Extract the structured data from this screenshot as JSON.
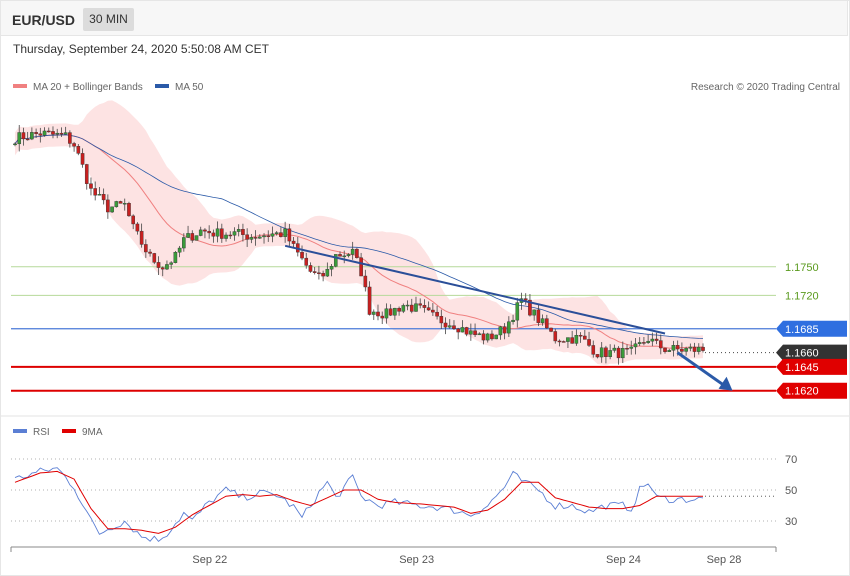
{
  "header": {
    "symbol": "EUR/USD",
    "timeframe": "30 MIN",
    "datetime": "Thursday, September 24, 2020 5:50:08 AM CET"
  },
  "legend": {
    "ma20": {
      "label": "MA 20 + Bollinger Bands",
      "color": "#f08080"
    },
    "ma50": {
      "label": "MA 50",
      "color": "#2b5aa8"
    },
    "rsi": {
      "label": "RSI",
      "color": "#5b7fd4"
    },
    "ma9": {
      "label": "9MA",
      "color": "#e00000"
    }
  },
  "copyright": "Research © 2020 Trading Central",
  "chart_data": {
    "type": "candlestick",
    "price_ylim": [
      1.1605,
      1.1925
    ],
    "x_ticks": [
      {
        "label": "Sep 22",
        "index": 49
      },
      {
        "label": "Sep 23",
        "index": 98
      },
      {
        "label": "Sep 24",
        "index": 147
      },
      {
        "label": "Sep 28",
        "index": 163
      }
    ],
    "candles_count": 164,
    "close_path": [
      [
        0,
        1.1885
      ],
      [
        6,
        1.189
      ],
      [
        12,
        1.1887
      ],
      [
        14,
        1.1878
      ],
      [
        16,
        1.1855
      ],
      [
        18,
        1.183
      ],
      [
        22,
        1.1812
      ],
      [
        26,
        1.1815
      ],
      [
        28,
        1.179
      ],
      [
        32,
        1.176
      ],
      [
        35,
        1.175
      ],
      [
        38,
        1.176
      ],
      [
        40,
        1.1778
      ],
      [
        44,
        1.1788
      ],
      [
        48,
        1.1785
      ],
      [
        52,
        1.1785
      ],
      [
        56,
        1.1782
      ],
      [
        60,
        1.1784
      ],
      [
        64,
        1.1785
      ],
      [
        66,
        1.177
      ],
      [
        70,
        1.1745
      ],
      [
        72,
        1.1738
      ],
      [
        74,
        1.1745
      ],
      [
        76,
        1.1762
      ],
      [
        80,
        1.1765
      ],
      [
        82,
        1.1745
      ],
      [
        84,
        1.1705
      ],
      [
        88,
        1.17
      ],
      [
        92,
        1.171
      ],
      [
        96,
        1.1705
      ],
      [
        100,
        1.1695
      ],
      [
        104,
        1.169
      ],
      [
        108,
        1.168
      ],
      [
        112,
        1.1675
      ],
      [
        116,
        1.1685
      ],
      [
        120,
        1.1715
      ],
      [
        124,
        1.1695
      ],
      [
        128,
        1.1675
      ],
      [
        134,
        1.1675
      ],
      [
        138,
        1.166
      ],
      [
        142,
        1.166
      ],
      [
        146,
        1.166
      ],
      [
        150,
        1.1675
      ],
      [
        152,
        1.1668
      ],
      [
        154,
        1.1664
      ],
      [
        156,
        1.1663
      ]
    ],
    "levels": [
      {
        "value": 1.175,
        "label": "1.1750",
        "style": "thin-green"
      },
      {
        "value": 1.172,
        "label": "1.1720",
        "style": "thin-green"
      },
      {
        "value": 1.1685,
        "label": "1.1685",
        "style": "blue-badge"
      },
      {
        "value": 1.166,
        "label": "1.1660",
        "style": "dark-badge"
      },
      {
        "value": 1.1645,
        "label": "1.1645",
        "style": "red-badge"
      },
      {
        "value": 1.162,
        "label": "1.1620",
        "style": "red-badge"
      }
    ],
    "trendline": [
      [
        64,
        1.1772
      ],
      [
        154,
        1.168
      ]
    ],
    "arrow": [
      [
        156,
        1.166
      ],
      [
        170,
        1.162
      ]
    ],
    "rsi": {
      "yticks": [
        30,
        50,
        70
      ],
      "rsi_path": [
        [
          0,
          57
        ],
        [
          6,
          62
        ],
        [
          10,
          64
        ],
        [
          14,
          52
        ],
        [
          18,
          30
        ],
        [
          20,
          22
        ],
        [
          22,
          25
        ],
        [
          26,
          30
        ],
        [
          30,
          20
        ],
        [
          34,
          18
        ],
        [
          36,
          22
        ],
        [
          40,
          35
        ],
        [
          42,
          30
        ],
        [
          46,
          42
        ],
        [
          50,
          50
        ],
        [
          54,
          45
        ],
        [
          58,
          48
        ],
        [
          62,
          47
        ],
        [
          66,
          39
        ],
        [
          68,
          32
        ],
        [
          72,
          48
        ],
        [
          74,
          55
        ],
        [
          76,
          45
        ],
        [
          80,
          58
        ],
        [
          82,
          46
        ],
        [
          86,
          40
        ],
        [
          90,
          42
        ],
        [
          96,
          40
        ],
        [
          100,
          39
        ],
        [
          104,
          37
        ],
        [
          108,
          34
        ],
        [
          112,
          40
        ],
        [
          116,
          52
        ],
        [
          118,
          60
        ],
        [
          120,
          56
        ],
        [
          124,
          50
        ],
        [
          128,
          40
        ],
        [
          132,
          40
        ],
        [
          136,
          36
        ],
        [
          140,
          40
        ],
        [
          144,
          40
        ],
        [
          146,
          38
        ],
        [
          148,
          50
        ],
        [
          150,
          55
        ],
        [
          152,
          45
        ],
        [
          156,
          44
        ]
      ],
      "ma9_path": [
        [
          0,
          55
        ],
        [
          6,
          61
        ],
        [
          10,
          62
        ],
        [
          14,
          57
        ],
        [
          18,
          38
        ],
        [
          22,
          25
        ],
        [
          26,
          25
        ],
        [
          30,
          24
        ],
        [
          34,
          22
        ],
        [
          38,
          26
        ],
        [
          42,
          34
        ],
        [
          46,
          40
        ],
        [
          50,
          46
        ],
        [
          54,
          47
        ],
        [
          58,
          46
        ],
        [
          62,
          47
        ],
        [
          66,
          43
        ],
        [
          70,
          40
        ],
        [
          74,
          45
        ],
        [
          78,
          50
        ],
        [
          82,
          50
        ],
        [
          86,
          44
        ],
        [
          90,
          42
        ],
        [
          96,
          41
        ],
        [
          100,
          40
        ],
        [
          104,
          39
        ],
        [
          108,
          35
        ],
        [
          112,
          37
        ],
        [
          116,
          44
        ],
        [
          120,
          55
        ],
        [
          124,
          55
        ],
        [
          128,
          45
        ],
        [
          132,
          42
        ],
        [
          136,
          39
        ],
        [
          140,
          38
        ],
        [
          144,
          38
        ],
        [
          148,
          40
        ],
        [
          152,
          46
        ],
        [
          156,
          46
        ]
      ]
    }
  }
}
